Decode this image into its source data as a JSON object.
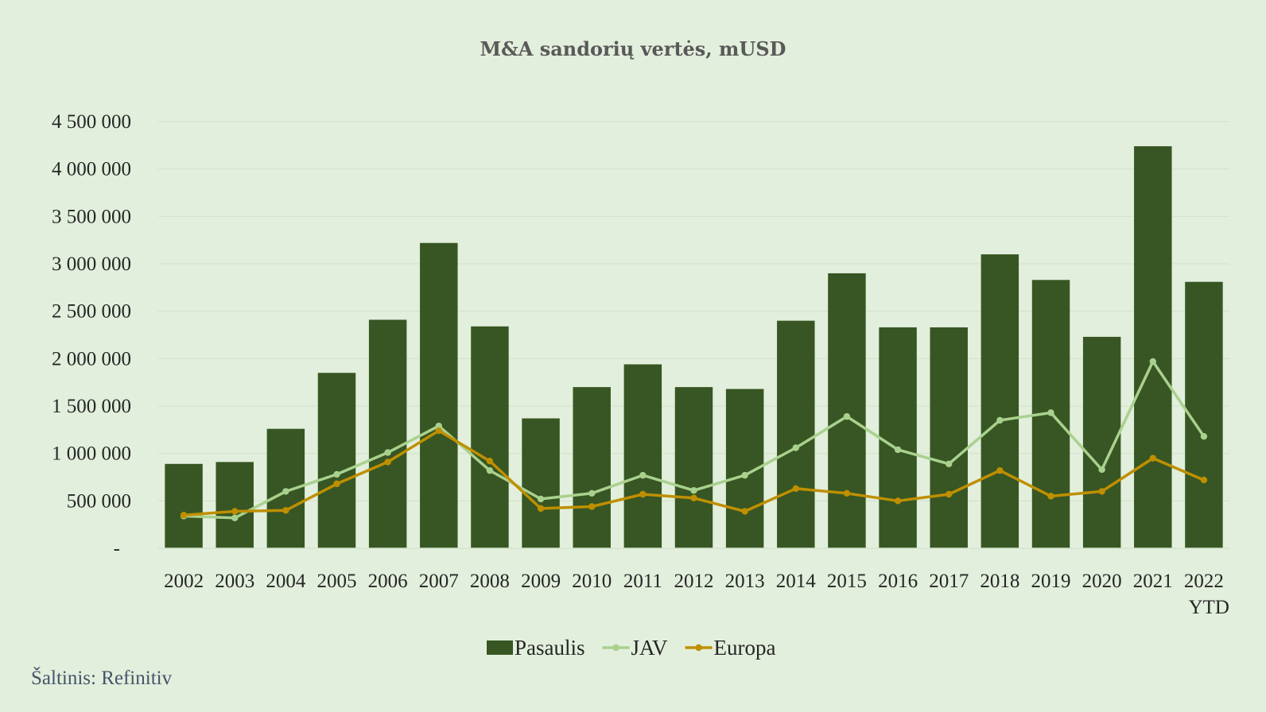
{
  "colors": {
    "background": "#e2efdc",
    "gridline": "#d4e3cd",
    "title": "#595959",
    "axis_text": "#262626",
    "source_text": "#44546a"
  },
  "source_note": "Šaltinis: Refinitiv",
  "chart_data": {
    "type": "bar",
    "title": "M&A sandorių vertės, mUSD",
    "xlabel": "",
    "ylabel": "",
    "categories": [
      "2002",
      "2003",
      "2004",
      "2005",
      "2006",
      "2007",
      "2008",
      "2009",
      "2010",
      "2011",
      "2012",
      "2013",
      "2014",
      "2015",
      "2016",
      "2017",
      "2018",
      "2019",
      "2020",
      "2021",
      "2022\nYTD"
    ],
    "ylim": [
      0,
      4500000
    ],
    "y_ticks": [
      0,
      500000,
      1000000,
      1500000,
      2000000,
      2500000,
      3000000,
      3500000,
      4000000,
      4500000
    ],
    "y_tick_labels": [
      "-",
      "500 000",
      "1 000 000",
      "1 500 000",
      "2 000 000",
      "2 500 000",
      "3 000 000",
      "3 500 000",
      "4 000 000",
      "4 500 000"
    ],
    "grid": true,
    "legend_position": "bottom",
    "series": [
      {
        "name": "Pasaulis",
        "kind": "bar",
        "color": "#375623",
        "values": [
          890000,
          910000,
          1260000,
          1850000,
          2410000,
          3220000,
          2340000,
          1370000,
          1700000,
          1940000,
          1700000,
          1680000,
          2400000,
          2900000,
          2330000,
          2330000,
          3100000,
          2830000,
          2230000,
          4240000,
          2810000
        ]
      },
      {
        "name": "JAV",
        "kind": "line",
        "color": "#a9d18e",
        "values": [
          340000,
          320000,
          600000,
          780000,
          1010000,
          1290000,
          820000,
          520000,
          580000,
          770000,
          610000,
          770000,
          1060000,
          1390000,
          1040000,
          890000,
          1350000,
          1430000,
          830000,
          1970000,
          1180000
        ]
      },
      {
        "name": "Europa",
        "kind": "line",
        "color": "#bf8f00",
        "values": [
          350000,
          390000,
          400000,
          680000,
          910000,
          1240000,
          920000,
          420000,
          440000,
          570000,
          530000,
          390000,
          630000,
          580000,
          500000,
          570000,
          820000,
          550000,
          600000,
          950000,
          720000
        ]
      }
    ]
  }
}
